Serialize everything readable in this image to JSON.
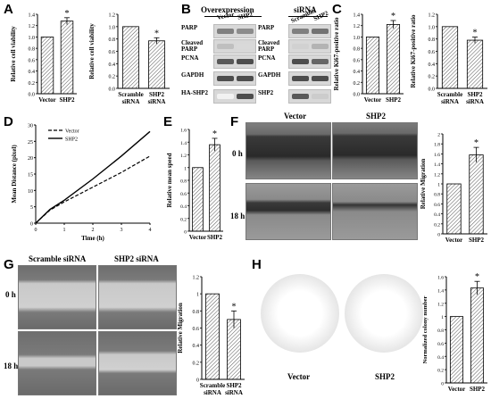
{
  "panels": {
    "A": {
      "letter": "A",
      "charts": [
        {
          "ylabel": "Relative cell viability",
          "yticks": [
            "0.0",
            "0.2",
            "0.4",
            "0.6",
            "0.8",
            "1.0",
            "1.2",
            "1.4"
          ],
          "categories": [
            "Vector",
            "SHP2"
          ],
          "values": [
            1.0,
            1.28
          ],
          "errors": [
            0,
            0.06
          ],
          "sig": [
            false,
            true
          ],
          "ylim": [
            0,
            1.4
          ]
        },
        {
          "ylabel": "Relative cell viability",
          "yticks": [
            "0.0",
            "0.2",
            "0.4",
            "0.6",
            "0.8",
            "1.0",
            "1.2"
          ],
          "categories": [
            "Scramble siRNA",
            "SHP2 siRNA"
          ],
          "values": [
            1.0,
            0.77
          ],
          "errors": [
            0,
            0.05
          ],
          "sig": [
            false,
            true
          ],
          "ylim": [
            0,
            1.2
          ]
        }
      ]
    },
    "B": {
      "letter": "B",
      "left_header": "Overexpression",
      "right_header": "siRNA",
      "left_lanes": [
        "Vector",
        "SHP2"
      ],
      "right_lanes": [
        "Scramble",
        "SHP2"
      ],
      "left_rows": [
        "PARP",
        "Cleaved PARP",
        "PCNA",
        "GAPDH",
        "HA-SHP2"
      ],
      "right_rows": [
        "PARP",
        "Cleaved PARP",
        "PCNA",
        "GAPDH",
        "SHP2"
      ]
    },
    "C": {
      "letter": "C",
      "charts": [
        {
          "ylabel": "Relative Ki67-positive ratio",
          "yticks": [
            "0.0",
            "0.2",
            "0.4",
            "0.6",
            "0.8",
            "1.0",
            "1.2",
            "1.4"
          ],
          "categories": [
            "Vector",
            "SHP2"
          ],
          "values": [
            1.0,
            1.22
          ],
          "errors": [
            0,
            0.07
          ],
          "sig": [
            false,
            true
          ],
          "ylim": [
            0,
            1.4
          ]
        },
        {
          "ylabel": "Relative Ki67-positive ratio",
          "yticks": [
            "0.0",
            "0.2",
            "0.4",
            "0.6",
            "0.8",
            "1.0",
            "1.2"
          ],
          "categories": [
            "Scramble siRNA",
            "SHP2 siRNA"
          ],
          "values": [
            1.0,
            0.78
          ],
          "errors": [
            0,
            0.05
          ],
          "sig": [
            false,
            true
          ],
          "ylim": [
            0,
            1.2
          ]
        }
      ]
    },
    "D": {
      "letter": "D",
      "ylabel": "Mean Distance (pixel)",
      "xlabel": "Time (h)",
      "xticks": [
        "0",
        "1",
        "2",
        "3",
        "4"
      ],
      "yticks": [
        "0",
        "5",
        "10",
        "15",
        "20",
        "25",
        "30"
      ],
      "legend": [
        "Vector",
        "SHP2"
      ],
      "series": [
        {
          "name": "Vector",
          "x": [
            0,
            0.5,
            1,
            2,
            3,
            4
          ],
          "y": [
            0,
            4,
            6.5,
            11,
            15.5,
            20.5
          ]
        },
        {
          "name": "SHP2",
          "x": [
            0,
            0.5,
            1,
            2,
            3,
            4
          ],
          "y": [
            0,
            4.2,
            7,
            13.5,
            20.5,
            28
          ]
        }
      ]
    },
    "E": {
      "letter": "E",
      "chart": {
        "ylabel": "Relative mean speed",
        "yticks": [
          "0",
          "0.2",
          "0.4",
          "0.6",
          "0.8",
          "1",
          "1.2",
          "1.4",
          "1.6"
        ],
        "categories": [
          "Vector",
          "SHP2"
        ],
        "values": [
          1.0,
          1.36
        ],
        "errors": [
          0,
          0.1
        ],
        "sig": [
          false,
          true
        ],
        "ylim": [
          0,
          1.6
        ]
      }
    },
    "F": {
      "letter": "F",
      "col_labels": [
        "Vector",
        "SHP2"
      ],
      "row_labels": [
        "0 h",
        "18 h"
      ],
      "chart": {
        "ylabel": "Relative Migration",
        "yticks": [
          "0",
          "0.2",
          "0.4",
          "0.6",
          "0.8",
          "1",
          "1.2",
          "1.4",
          "1.6",
          "1.8",
          "2"
        ],
        "categories": [
          "Vector",
          "SHP2"
        ],
        "values": [
          1.0,
          1.58
        ],
        "errors": [
          0,
          0.15
        ],
        "sig": [
          false,
          true
        ],
        "ylim": [
          0,
          2
        ]
      }
    },
    "G": {
      "letter": "G",
      "col_labels": [
        "Scramble siRNA",
        "SHP2 siRNA"
      ],
      "row_labels": [
        "0 h",
        "18 h"
      ],
      "chart": {
        "ylabel": "Relative Migration",
        "yticks": [
          "0",
          "0.2",
          "0.4",
          "0.6",
          "0.8",
          "1",
          "1.2"
        ],
        "categories": [
          "Scramble siRNA",
          "SHP2 siRNA"
        ],
        "values": [
          1.0,
          0.7
        ],
        "errors": [
          0,
          0.1
        ],
        "sig": [
          false,
          true
        ],
        "ylim": [
          0,
          1.2
        ]
      }
    },
    "H": {
      "letter": "H",
      "dish_labels": [
        "Vector",
        "SHP2"
      ],
      "chart": {
        "ylabel": "Normalized colony number",
        "yticks": [
          "0",
          "0.2",
          "0.4",
          "0.6",
          "0.8",
          "1",
          "1.2",
          "1.4",
          "1.6"
        ],
        "categories": [
          "Vector",
          "SHP2"
        ],
        "values": [
          1.0,
          1.43
        ],
        "errors": [
          0,
          0.1
        ],
        "sig": [
          false,
          true
        ],
        "ylim": [
          0,
          1.6
        ]
      }
    }
  },
  "star": "*"
}
